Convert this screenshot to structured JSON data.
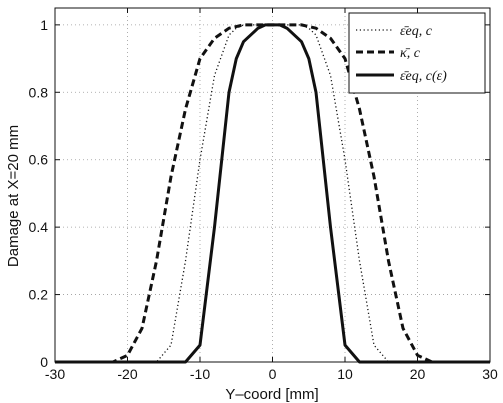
{
  "chart_data": {
    "type": "line",
    "xlabel": "Y–coord [mm]",
    "ylabel": "Damage at X=20 mm",
    "xlim": [
      -30,
      30
    ],
    "ylim": [
      0,
      1.05
    ],
    "xticks": [
      "-30",
      "-20",
      "-10",
      "0",
      "10",
      "20",
      "30"
    ],
    "yticks": [
      "0",
      "0.2",
      "0.4",
      "0.6",
      "0.8",
      "1"
    ],
    "xtick_values": [
      -30,
      -20,
      -10,
      0,
      10,
      20,
      30
    ],
    "ytick_values": [
      0,
      0.2,
      0.4,
      0.6,
      0.8,
      1
    ],
    "grid": true,
    "legend_position": "top-right",
    "series": [
      {
        "name": "ε̄eq, c",
        "style": "dotted",
        "x": [
          -30,
          -16,
          -14,
          -12,
          -10,
          -8,
          -6,
          -5,
          -4,
          -2,
          0,
          2,
          4,
          5,
          6,
          8,
          10,
          12,
          14,
          16,
          30
        ],
        "y": [
          0,
          0,
          0.05,
          0.3,
          0.6,
          0.85,
          0.97,
          0.99,
          1,
          1,
          1,
          1,
          1,
          0.99,
          0.97,
          0.85,
          0.6,
          0.3,
          0.05,
          0,
          0
        ]
      },
      {
        "name": "κ̄, c",
        "style": "dashed",
        "x": [
          -30,
          -22,
          -20,
          -18,
          -16,
          -14,
          -12,
          -10,
          -8,
          -6,
          -4,
          -2,
          0,
          2,
          4,
          6,
          8,
          10,
          12,
          14,
          16,
          18,
          20,
          22,
          30
        ],
        "y": [
          0,
          0,
          0.02,
          0.1,
          0.3,
          0.55,
          0.75,
          0.9,
          0.96,
          0.99,
          1,
          1,
          1,
          1,
          1,
          0.99,
          0.96,
          0.9,
          0.75,
          0.55,
          0.3,
          0.1,
          0.02,
          0,
          0
        ]
      },
      {
        "name": "ε̄eq, c(ε)",
        "style": "solid",
        "x": [
          -30,
          -12,
          -10,
          -8,
          -6,
          -5,
          -4,
          -2,
          -1,
          0,
          1,
          2,
          4,
          5,
          6,
          8,
          10,
          12,
          30
        ],
        "y": [
          0,
          0,
          0.05,
          0.4,
          0.8,
          0.9,
          0.95,
          0.99,
          1,
          1,
          1,
          0.99,
          0.95,
          0.9,
          0.8,
          0.4,
          0.05,
          0,
          0
        ]
      }
    ]
  },
  "colors": {
    "line": "#111111",
    "grid": "#9a9a9a"
  }
}
